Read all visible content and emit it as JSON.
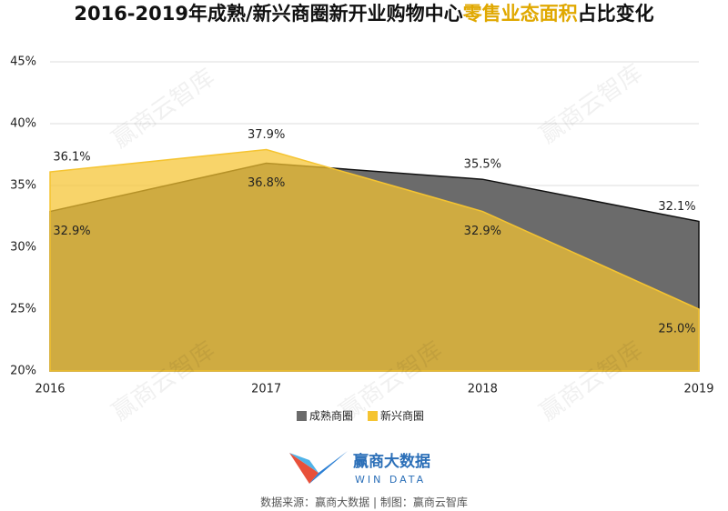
{
  "chart_data": {
    "type": "area",
    "title": [
      "2016-2019年成熟/新兴商圈新开业购物中心",
      "零售业态面积",
      "占比变化"
    ],
    "title_colors": [
      "#111111",
      "#e0a800",
      "#111111"
    ],
    "categories": [
      "2016",
      "2017",
      "2018",
      "2019"
    ],
    "series": [
      {
        "name": "成熟商圈",
        "color": "#6b6b6b",
        "values": [
          32.9,
          36.8,
          35.5,
          32.1
        ],
        "value_labels": [
          "32.9%",
          "36.8%",
          "35.5%",
          "32.1%"
        ]
      },
      {
        "name": "新兴商圈",
        "color": "#f5c431",
        "values": [
          36.1,
          37.9,
          32.9,
          25.0
        ],
        "value_labels": [
          "36.1%",
          "37.9%",
          "32.9%",
          "25.0%"
        ]
      }
    ],
    "ylim": [
      20,
      45
    ],
    "yticks": [
      {
        "value": 20,
        "label": "20%"
      },
      {
        "value": 25,
        "label": "25%"
      },
      {
        "value": 30,
        "label": "30%"
      },
      {
        "value": 35,
        "label": "35%"
      },
      {
        "value": 40,
        "label": "40%"
      },
      {
        "value": 45,
        "label": "45%"
      }
    ],
    "grid": true,
    "legend": "bottom"
  },
  "watermark": "赢商云智库",
  "logo": {
    "name": "赢商大数据",
    "subname": "WIN DATA"
  },
  "source": "数据来源：赢商大数据 | 制图：赢商云智库"
}
